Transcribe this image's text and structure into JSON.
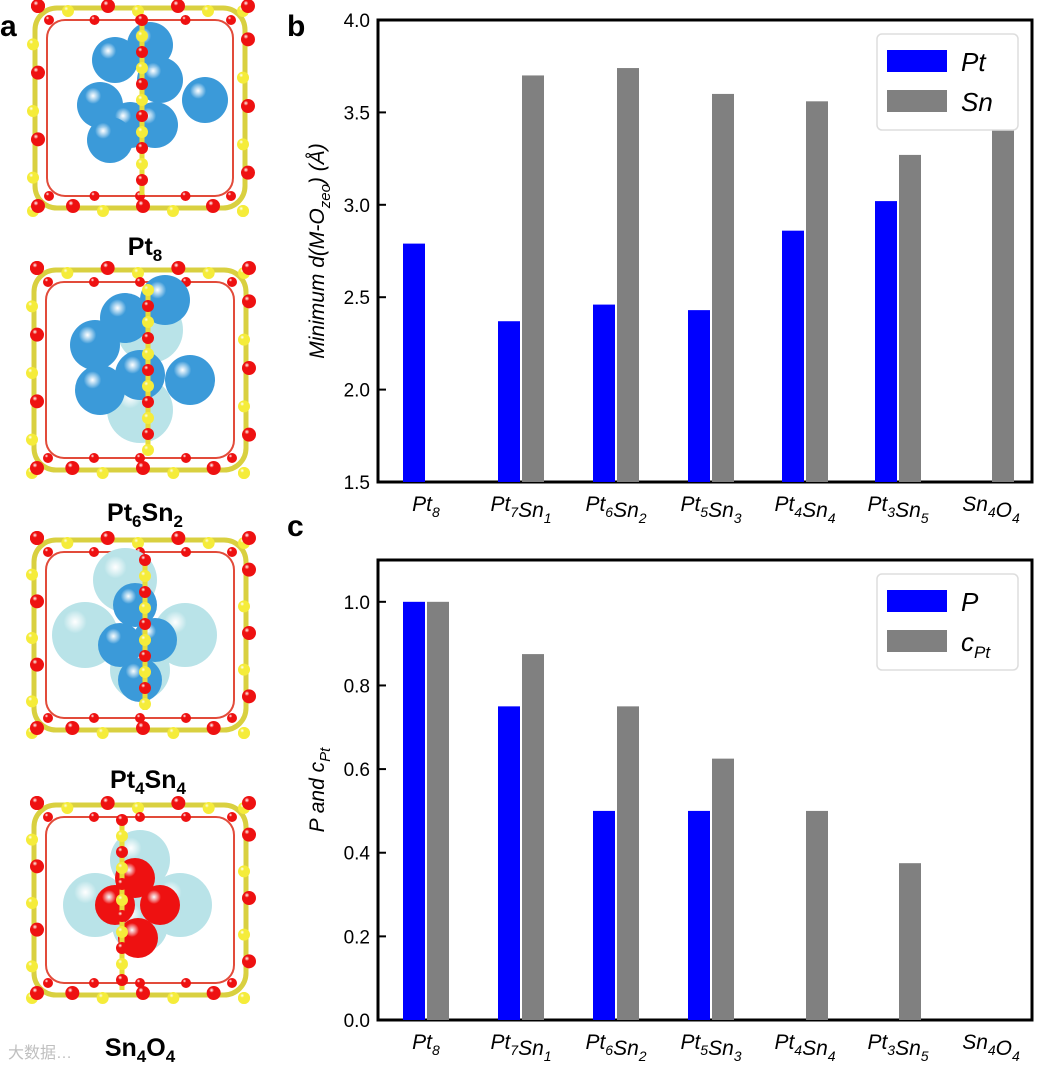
{
  "panels": {
    "a": "a",
    "b": "b",
    "c": "c"
  },
  "structures": [
    {
      "name": "Pt8",
      "base1": "Pt",
      "sub1": "8",
      "base2": "",
      "sub2": ""
    },
    {
      "name": "Pt6Sn2",
      "base1": "Pt",
      "sub1": "6",
      "base2": "Sn",
      "sub2": "2"
    },
    {
      "name": "Pt4Sn4",
      "base1": "Pt",
      "sub1": "4",
      "base2": "Sn",
      "sub2": "4"
    },
    {
      "name": "Sn4O4",
      "base1": "Sn",
      "sub1": "4",
      "base2": "O",
      "sub2": "4"
    }
  ],
  "watermark": "大数据…",
  "colors": {
    "blue": "#0000ff",
    "gray": "#808080",
    "pt_atom": "#3b9ad9",
    "sn_atom": "#b9e3e8",
    "o_atom": "#ee1111",
    "si_atom": "#f5ec3a"
  },
  "chart_data": [
    {
      "type": "bar",
      "panel": "b",
      "categories": [
        "Pt8",
        "Pt7Sn1",
        "Pt6Sn2",
        "Pt5Sn3",
        "Pt4Sn4",
        "Pt3Sn5",
        "Sn4O4"
      ],
      "category_parts": [
        [
          [
            "Pt",
            "8"
          ]
        ],
        [
          [
            "Pt",
            "7"
          ],
          [
            "Sn",
            "1"
          ]
        ],
        [
          [
            "Pt",
            "6"
          ],
          [
            "Sn",
            "2"
          ]
        ],
        [
          [
            "Pt",
            "5"
          ],
          [
            "Sn",
            "3"
          ]
        ],
        [
          [
            "Pt",
            "4"
          ],
          [
            "Sn",
            "4"
          ]
        ],
        [
          [
            "Pt",
            "3"
          ],
          [
            "Sn",
            "5"
          ]
        ],
        [
          [
            "Sn",
            "4"
          ],
          [
            "O",
            "4"
          ]
        ]
      ],
      "series": [
        {
          "name": "Pt",
          "color": "#0000ff",
          "values": [
            2.79,
            2.37,
            2.46,
            2.43,
            2.86,
            3.02,
            null
          ]
        },
        {
          "name": "Sn",
          "color": "#808080",
          "values": [
            null,
            3.7,
            3.74,
            3.6,
            3.56,
            3.27,
            3.41
          ]
        }
      ],
      "ylim": [
        1.5,
        4.0
      ],
      "yticks": [
        "1.5",
        "2.0",
        "2.5",
        "3.0",
        "3.5",
        "4.0"
      ],
      "ylabel": "Minimum d(M-O_zeo) (Å)",
      "ylabel_parts": {
        "pre": "Minimum d(M-O",
        "sub": "zeo",
        "post": ") (Å)"
      },
      "legend": [
        {
          "label": "Pt",
          "sub": ""
        },
        {
          "label": "Sn",
          "sub": ""
        }
      ],
      "legend_position": "top-right"
    },
    {
      "type": "bar",
      "panel": "c",
      "categories": [
        "Pt8",
        "Pt7Sn1",
        "Pt6Sn2",
        "Pt5Sn3",
        "Pt4Sn4",
        "Pt3Sn5",
        "Sn4O4"
      ],
      "category_parts": [
        [
          [
            "Pt",
            "8"
          ]
        ],
        [
          [
            "Pt",
            "7"
          ],
          [
            "Sn",
            "1"
          ]
        ],
        [
          [
            "Pt",
            "6"
          ],
          [
            "Sn",
            "2"
          ]
        ],
        [
          [
            "Pt",
            "5"
          ],
          [
            "Sn",
            "3"
          ]
        ],
        [
          [
            "Pt",
            "4"
          ],
          [
            "Sn",
            "4"
          ]
        ],
        [
          [
            "Pt",
            "3"
          ],
          [
            "Sn",
            "5"
          ]
        ],
        [
          [
            "Sn",
            "4"
          ],
          [
            "O",
            "4"
          ]
        ]
      ],
      "series": [
        {
          "name": "P",
          "color": "#0000ff",
          "values": [
            1.0,
            0.75,
            0.5,
            0.5,
            0,
            0,
            0
          ]
        },
        {
          "name": "c_Pt",
          "color": "#808080",
          "values": [
            1.0,
            0.875,
            0.75,
            0.625,
            0.5,
            0.375,
            0
          ]
        }
      ],
      "ylim": [
        0.0,
        1.1
      ],
      "yticks": [
        "0.0",
        "0.2",
        "0.4",
        "0.6",
        "0.8",
        "1.0"
      ],
      "ylabel": "P and c_Pt",
      "ylabel_parts": {
        "pre": "P and c",
        "sub": "Pt",
        "post": ""
      },
      "legend": [
        {
          "label": "P",
          "sub": ""
        },
        {
          "label": "c",
          "sub": "Pt"
        }
      ],
      "legend_position": "top-right"
    }
  ]
}
